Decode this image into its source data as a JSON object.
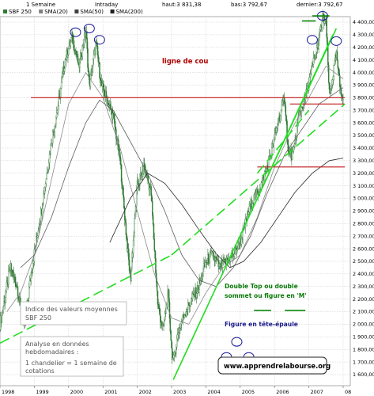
{
  "header": {
    "period": "1 Semaine",
    "mode": "Intraday",
    "haut": "haut:3 831,38",
    "bas": "bas:3 792,67",
    "dernier": "dernier:3 792,67",
    "legend": [
      {
        "label": "SBF 250",
        "color": "#2e7d32"
      },
      {
        "label": "SMA(20)",
        "color": "#808080"
      },
      {
        "label": "SMA(50)",
        "color": "#404040"
      },
      {
        "label": "SMA(200)",
        "color": "#202020"
      }
    ]
  },
  "annotations": {
    "neckline": "ligne de cou",
    "double_top": [
      "Double Top ou double",
      "sommet ou figure en 'M'"
    ],
    "head_shoulders": "Figure en tête-épaule",
    "index_box": [
      "Indice des valeurs moyennes",
      "SBF 250"
    ],
    "analysis_box": [
      "Analyse en données",
      "hebdomadaires :",
      "1 chandelier = 1 semaine de",
      "cotations"
    ],
    "url": "www.apprendrelabourse.org"
  },
  "colors": {
    "candle": "#2e7d32",
    "trend": "#22dd22",
    "support": "#c01818",
    "circle": "#1a1a9c",
    "grid": "#c8c8c8"
  },
  "chart_data": {
    "type": "candlestick",
    "title": "",
    "xlabel": "",
    "ylabel": "",
    "ylim": [
      1550,
      4450
    ],
    "xlim": [
      1998.0,
      2008.05
    ],
    "x_ticks": [
      "1998",
      "1999",
      "2000",
      "2001",
      "2002",
      "2003",
      "2004",
      "2005",
      "2006",
      "2007",
      "08"
    ],
    "y_ticks": [
      1600,
      1700,
      1800,
      1900,
      2000,
      2100,
      2200,
      2300,
      2400,
      2500,
      2600,
      2700,
      2800,
      2900,
      3000,
      3100,
      3200,
      3300,
      3400,
      3500,
      3600,
      3700,
      3800,
      3900,
      4000,
      4100,
      4200,
      4300,
      4400
    ],
    "y_tick_labels": [
      "1 600,00",
      "1 700,00",
      "1 800,00",
      "1 900,00",
      "2 000,00",
      "2 100,00",
      "2 200,00",
      "2 300,00",
      "2 400,00",
      "2 500,00",
      "2 600,00",
      "2 700,00",
      "2 800,00",
      "2 900,00",
      "3 000,00",
      "3 100,00",
      "3 200,00",
      "3 300,00",
      "3 400,00",
      "3 500,00",
      "3 600,00",
      "3 700,00",
      "3 800,00",
      "3 900,00",
      "4 000,00",
      "4 100,00",
      "4 200,00",
      "4 300,00",
      "4 400,00"
    ],
    "price_path": [
      [
        1998.0,
        2000
      ],
      [
        1998.3,
        2450
      ],
      [
        1998.5,
        2300
      ],
      [
        1998.7,
        1950
      ],
      [
        1998.9,
        2400
      ],
      [
        1999.2,
        2900
      ],
      [
        1999.5,
        3450
      ],
      [
        1999.7,
        3750
      ],
      [
        1999.9,
        4100
      ],
      [
        2000.1,
        4280
      ],
      [
        2000.3,
        4050
      ],
      [
        2000.5,
        4330
      ],
      [
        2000.6,
        3900
      ],
      [
        2000.8,
        4230
      ],
      [
        2000.95,
        3900
      ],
      [
        2001.1,
        3800
      ],
      [
        2001.3,
        3650
      ],
      [
        2001.5,
        3300
      ],
      [
        2001.7,
        2650
      ],
      [
        2001.8,
        2350
      ],
      [
        2002.0,
        3100
      ],
      [
        2002.2,
        3250
      ],
      [
        2002.4,
        3050
      ],
      [
        2002.5,
        2600
      ],
      [
        2002.6,
        2150
      ],
      [
        2002.75,
        1950
      ],
      [
        2002.9,
        2250
      ],
      [
        2003.0,
        1800
      ],
      [
        2003.05,
        1700
      ],
      [
        2003.2,
        1950
      ],
      [
        2003.4,
        2100
      ],
      [
        2003.6,
        2200
      ],
      [
        2003.8,
        2300
      ],
      [
        2004.0,
        2500
      ],
      [
        2004.2,
        2550
      ],
      [
        2004.4,
        2450
      ],
      [
        2004.6,
        2500
      ],
      [
        2004.8,
        2550
      ],
      [
        2005.0,
        2650
      ],
      [
        2005.3,
        2950
      ],
      [
        2005.6,
        3100
      ],
      [
        2005.9,
        3350
      ],
      [
        2006.1,
        3600
      ],
      [
        2006.3,
        3800
      ],
      [
        2006.4,
        3350
      ],
      [
        2006.55,
        3350
      ],
      [
        2006.7,
        3650
      ],
      [
        2006.9,
        3800
      ],
      [
        2007.1,
        4050
      ],
      [
        2007.25,
        4200
      ],
      [
        2007.4,
        4430
      ],
      [
        2007.5,
        4400
      ],
      [
        2007.6,
        3800
      ],
      [
        2007.8,
        4150
      ],
      [
        2007.9,
        3900
      ],
      [
        2008.0,
        3793
      ]
    ],
    "series": [
      {
        "name": "SMA(20)",
        "points": [
          [
            1998.2,
            2100
          ],
          [
            1998.6,
            2250
          ],
          [
            1999.0,
            2550
          ],
          [
            1999.5,
            3150
          ],
          [
            2000.0,
            3750
          ],
          [
            2000.5,
            4000
          ],
          [
            2001.0,
            3800
          ],
          [
            2001.5,
            3400
          ],
          [
            2002.0,
            2900
          ],
          [
            2002.5,
            2400
          ],
          [
            2003.0,
            2050
          ],
          [
            2003.5,
            2000
          ],
          [
            2004.0,
            2250
          ],
          [
            2004.5,
            2450
          ],
          [
            2005.0,
            2550
          ],
          [
            2005.5,
            2850
          ],
          [
            2006.0,
            3250
          ],
          [
            2006.5,
            3550
          ],
          [
            2007.0,
            3800
          ],
          [
            2007.5,
            4050
          ],
          [
            2008.0,
            3950
          ]
        ]
      },
      {
        "name": "SMA(50)",
        "points": [
          [
            1998.6,
            2450
          ],
          [
            1999.0,
            2550
          ],
          [
            1999.5,
            2850
          ],
          [
            2000.0,
            3250
          ],
          [
            2000.5,
            3600
          ],
          [
            2000.9,
            3780
          ],
          [
            2001.3,
            3700
          ],
          [
            2001.8,
            3450
          ],
          [
            2002.3,
            3200
          ],
          [
            2002.8,
            2900
          ],
          [
            2003.3,
            2550
          ],
          [
            2003.8,
            2350
          ],
          [
            2004.3,
            2300
          ],
          [
            2004.8,
            2450
          ],
          [
            2005.3,
            2700
          ],
          [
            2005.8,
            3050
          ],
          [
            2006.3,
            3350
          ],
          [
            2006.8,
            3550
          ],
          [
            2007.3,
            3750
          ],
          [
            2008.0,
            3880
          ]
        ]
      },
      {
        "name": "SMA(200)",
        "points": [
          [
            2001.2,
            2650
          ],
          [
            2001.8,
            3000
          ],
          [
            2002.3,
            3200
          ],
          [
            2002.8,
            3120
          ],
          [
            2003.3,
            2950
          ],
          [
            2003.8,
            2750
          ],
          [
            2004.3,
            2560
          ],
          [
            2004.7,
            2450
          ],
          [
            2005.1,
            2500
          ],
          [
            2005.6,
            2650
          ],
          [
            2006.1,
            2850
          ],
          [
            2006.6,
            3050
          ],
          [
            2007.1,
            3200
          ],
          [
            2007.6,
            3300
          ],
          [
            2008.0,
            3320
          ]
        ]
      }
    ],
    "horizontal_levels": [
      {
        "value": 3800,
        "x_from": 1998.9,
        "x_to": 2008.05,
        "role": "ligne de cou"
      },
      {
        "value": 3750,
        "x_from": 2006.45,
        "x_to": 2008.05
      },
      {
        "value": 3250,
        "x_from": 2005.5,
        "x_to": 2008.05
      }
    ],
    "trend_lines": [
      {
        "from": [
          1998.0,
          1850
        ],
        "to": [
          2003.0,
          2550
        ],
        "style": "dashed"
      },
      {
        "from": [
          2003.0,
          2550
        ],
        "to": [
          2008.05,
          3750
        ],
        "style": "dashed"
      },
      {
        "from": [
          2003.05,
          1560
        ],
        "to": [
          2007.8,
          4350
        ],
        "style": "solid"
      },
      {
        "from": [
          2005.5,
          3000
        ],
        "to": [
          2007.7,
          4300
        ],
        "style": "solid"
      },
      {
        "from": [
          2005.5,
          3200
        ],
        "to": [
          2007.0,
          3700
        ],
        "style": "dashed"
      }
    ],
    "double_top_markers": [
      [
        2006.8,
        2007.2,
        4410
      ],
      [
        2007.1,
        2007.6,
        4450
      ]
    ],
    "legend_markers": [
      [
        2005.4,
        2005.9,
        2110
      ],
      [
        2006.3,
        2006.9,
        2110
      ]
    ],
    "circles": [
      {
        "x": 2000.2,
        "y": 4320
      },
      {
        "x": 2000.6,
        "y": 4350
      },
      {
        "x": 2000.9,
        "y": 4260
      },
      {
        "x": 2007.1,
        "y": 4260
      },
      {
        "x": 2007.4,
        "y": 4450
      },
      {
        "x": 2007.8,
        "y": 4250
      },
      {
        "x": 2004.6,
        "y": 1740
      },
      {
        "x": 2004.9,
        "y": 1860
      },
      {
        "x": 2005.25,
        "y": 1740
      }
    ]
  }
}
